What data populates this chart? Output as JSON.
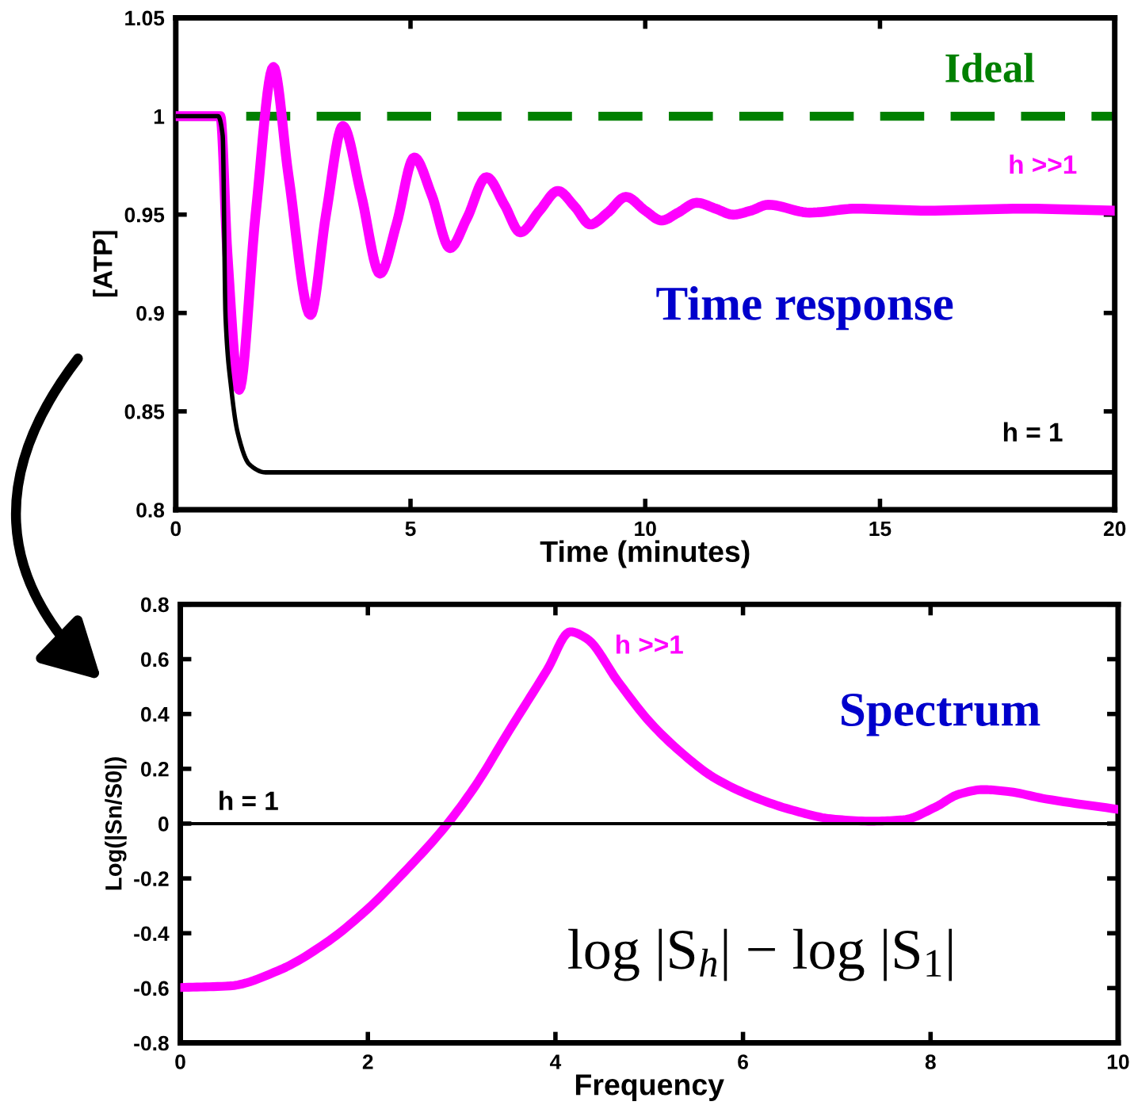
{
  "chart_data": [
    {
      "type": "line",
      "xlabel": "Time (minutes)",
      "ylabel": "[ATP]",
      "xlim": [
        0,
        20
      ],
      "ylim": [
        0.8,
        1.05
      ],
      "xticks": [
        0,
        5,
        10,
        15,
        20
      ],
      "yticks": [
        0.8,
        0.85,
        0.9,
        0.95,
        1,
        1.05
      ],
      "grid": false,
      "legend": false,
      "line_style": "solid",
      "marker": "none",
      "ref_lines": [
        {
          "axis": "y",
          "value": 1,
          "label": "Ideal",
          "color": "#008000",
          "line_style": "dashed"
        }
      ],
      "annotations": [
        "Time response"
      ],
      "series": [
        {
          "name": "h >>1",
          "color": "#ff00ff",
          "x": [
            0,
            0.95,
            1.1,
            1.35,
            1.7,
            2.08,
            2.4,
            2.87,
            3.2,
            3.56,
            3.95,
            4.35,
            4.7,
            5.08,
            5.45,
            5.84,
            6.2,
            6.62,
            7.0,
            7.34,
            7.75,
            8.14,
            8.5,
            8.83,
            9.2,
            9.59,
            10.0,
            10.35,
            10.7,
            11.1,
            11.5,
            11.87,
            12.25,
            12.62,
            13.5,
            14.5,
            16,
            18,
            20
          ],
          "values": [
            1,
            1,
            0.93,
            0.861,
            0.95,
            1.025,
            0.97,
            0.899,
            0.95,
            0.995,
            0.96,
            0.92,
            0.945,
            0.979,
            0.96,
            0.933,
            0.948,
            0.969,
            0.955,
            0.941,
            0.952,
            0.962,
            0.954,
            0.945,
            0.951,
            0.959,
            0.952,
            0.947,
            0.951,
            0.956,
            0.953,
            0.95,
            0.952,
            0.955,
            0.951,
            0.953,
            0.952,
            0.953,
            0.952
          ]
        },
        {
          "name": "h = 1",
          "color": "#000000",
          "x": [
            0,
            0.9,
            1.0,
            1.06,
            1.18,
            1.32,
            1.57,
            1.91,
            20
          ],
          "values": [
            1,
            1,
            0.99,
            0.898,
            0.862,
            0.839,
            0.823,
            0.819,
            0.819
          ]
        }
      ]
    },
    {
      "type": "line",
      "xlabel": "Frequency",
      "ylabel": "Log(|Sn/S0|)",
      "xlim": [
        0,
        10
      ],
      "ylim": [
        -0.8,
        0.8
      ],
      "xticks": [
        0,
        2,
        4,
        6,
        8,
        10
      ],
      "yticks": [
        -0.8,
        -0.6,
        -0.4,
        -0.2,
        0,
        0.2,
        0.4,
        0.6,
        0.8
      ],
      "grid": false,
      "legend": false,
      "line_style": "solid",
      "marker": "none",
      "annotations": [
        "Spectrum",
        "log |S$_{h}$| − log |S$_{1}$|"
      ],
      "series": [
        {
          "name": "h >>1",
          "color": "#ff00ff",
          "x": [
            0,
            0.53,
            1.04,
            1.55,
            1.97,
            2.39,
            2.81,
            3.15,
            3.49,
            3.91,
            4.16,
            4.33,
            4.67,
            5.0,
            5.35,
            5.68,
            6.11,
            6.53,
            6.95,
            7.37,
            7.71,
            8.05,
            8.3,
            8.56,
            8.81,
            9.23,
            10
          ],
          "values": [
            -0.598,
            -0.592,
            -0.537,
            -0.436,
            -0.32,
            -0.176,
            -0.017,
            0.14,
            0.33,
            0.56,
            0.7,
            0.676,
            0.517,
            0.373,
            0.257,
            0.17,
            0.098,
            0.049,
            0.017,
            0.009,
            0.014,
            0.06,
            0.107,
            0.124,
            0.118,
            0.09,
            0.052
          ]
        },
        {
          "name": "h = 1",
          "color": "#000000",
          "x": [
            0,
            10
          ],
          "values": [
            0,
            0
          ]
        }
      ]
    }
  ]
}
